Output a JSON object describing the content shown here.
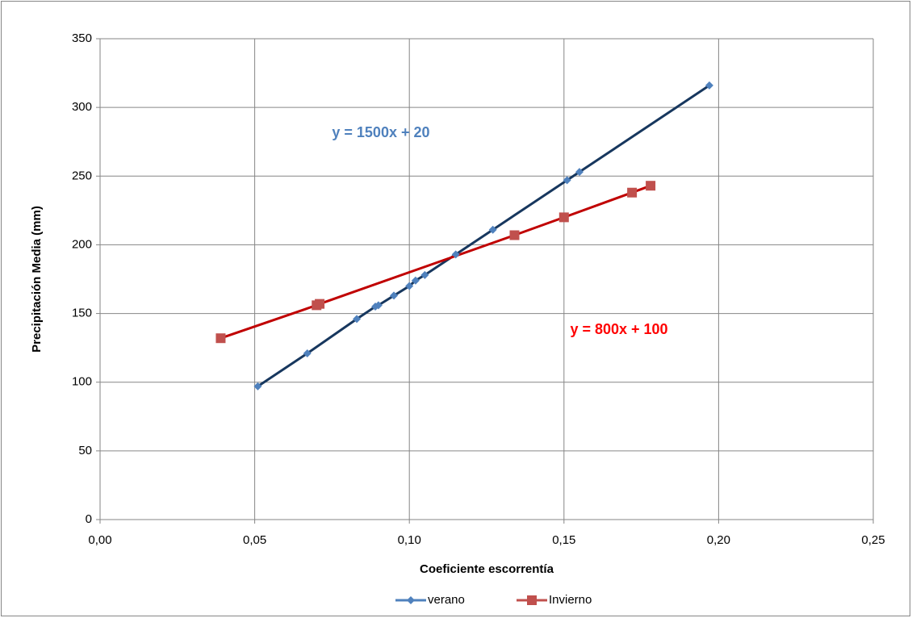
{
  "chart_data": {
    "type": "line",
    "x_label": "Coeficiente escorrentía",
    "y_label": "Precipitación Media (mm)",
    "xlim": [
      0,
      0.25
    ],
    "xticks": [
      {
        "value": 0,
        "label": "0,00"
      },
      {
        "value": 0.05,
        "label": "0,05"
      },
      {
        "value": 0.1,
        "label": "0,10"
      },
      {
        "value": 0.15,
        "label": "0,15"
      },
      {
        "value": 0.2,
        "label": "0,20"
      },
      {
        "value": 0.25,
        "label": "0,25"
      }
    ],
    "ylim": [
      0,
      350
    ],
    "yticks": [
      0,
      50,
      100,
      150,
      200,
      250,
      300,
      350
    ],
    "grid": true,
    "legend": "bottom",
    "series": [
      {
        "name": "verano",
        "color": "#4f81bd",
        "line_color": "#17375e",
        "marker": "diamond",
        "x": [
          0.051,
          0.067,
          0.083,
          0.089,
          0.09,
          0.095,
          0.1,
          0.102,
          0.105,
          0.115,
          0.127,
          0.151,
          0.155,
          0.197
        ],
        "values": [
          97,
          121,
          146,
          155,
          156,
          163,
          170,
          174,
          178,
          193,
          211,
          247,
          253,
          316
        ]
      },
      {
        "name": "Invierno",
        "color": "#c0504d",
        "line_color": "#c00000",
        "marker": "square",
        "x": [
          0.039,
          0.07,
          0.071,
          0.134,
          0.15,
          0.172,
          0.178
        ],
        "values": [
          132,
          156,
          157,
          207,
          220,
          238,
          243
        ]
      }
    ],
    "annotations": [
      {
        "text": "y = 1500x + 20",
        "color": "#4f81bd",
        "x": 0.075,
        "y": 281
      },
      {
        "text": "y = 800x + 100",
        "color": "#ff0000",
        "x": 0.152,
        "y": 138
      }
    ]
  }
}
